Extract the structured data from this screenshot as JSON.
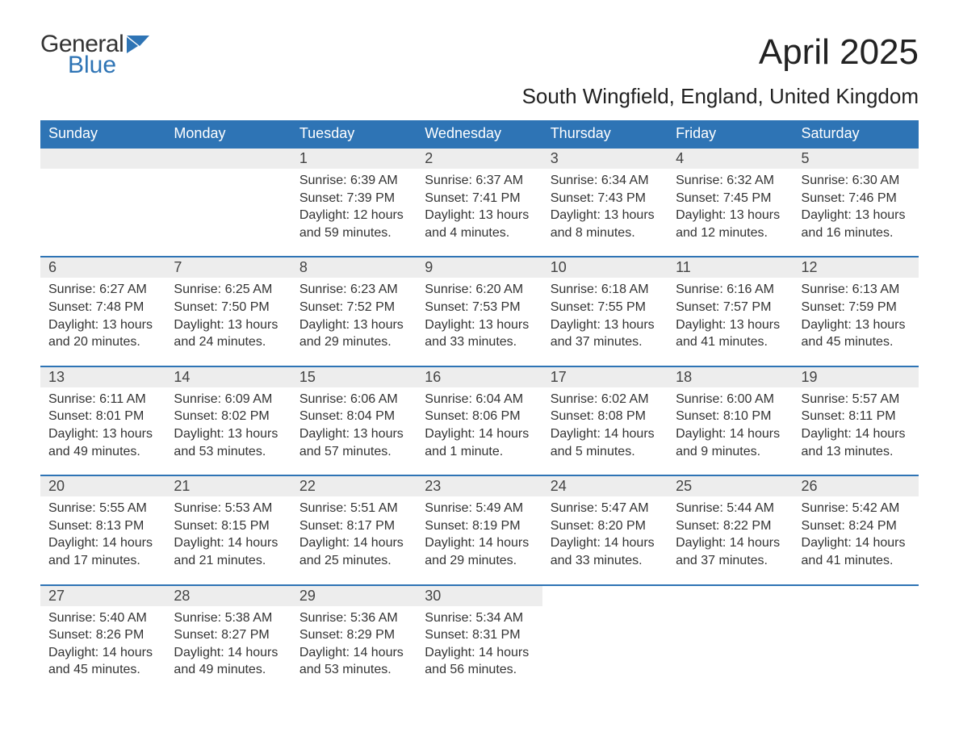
{
  "logo": {
    "text_top": "General",
    "text_bottom": "Blue",
    "accent_color": "#2e74b5",
    "text_color": "#333333"
  },
  "title": "April 2025",
  "location": "South Wingfield, England, United Kingdom",
  "styling": {
    "header_bg": "#2e74b5",
    "header_text_color": "#ffffff",
    "daynum_bg": "#ededed",
    "daynum_border_top": "#2e74b5",
    "body_text_color": "#333333",
    "page_bg": "#ffffff",
    "title_fontsize": 44,
    "location_fontsize": 26,
    "dayheader_fontsize": 18,
    "daynum_fontsize": 18,
    "cell_fontsize": 16
  },
  "day_headers": [
    "Sunday",
    "Monday",
    "Tuesday",
    "Wednesday",
    "Thursday",
    "Friday",
    "Saturday"
  ],
  "weeks": [
    [
      null,
      null,
      {
        "n": "1",
        "sunrise": "6:39 AM",
        "sunset": "7:39 PM",
        "daylight": "12 hours and 59 minutes."
      },
      {
        "n": "2",
        "sunrise": "6:37 AM",
        "sunset": "7:41 PM",
        "daylight": "13 hours and 4 minutes."
      },
      {
        "n": "3",
        "sunrise": "6:34 AM",
        "sunset": "7:43 PM",
        "daylight": "13 hours and 8 minutes."
      },
      {
        "n": "4",
        "sunrise": "6:32 AM",
        "sunset": "7:45 PM",
        "daylight": "13 hours and 12 minutes."
      },
      {
        "n": "5",
        "sunrise": "6:30 AM",
        "sunset": "7:46 PM",
        "daylight": "13 hours and 16 minutes."
      }
    ],
    [
      {
        "n": "6",
        "sunrise": "6:27 AM",
        "sunset": "7:48 PM",
        "daylight": "13 hours and 20 minutes."
      },
      {
        "n": "7",
        "sunrise": "6:25 AM",
        "sunset": "7:50 PM",
        "daylight": "13 hours and 24 minutes."
      },
      {
        "n": "8",
        "sunrise": "6:23 AM",
        "sunset": "7:52 PM",
        "daylight": "13 hours and 29 minutes."
      },
      {
        "n": "9",
        "sunrise": "6:20 AM",
        "sunset": "7:53 PM",
        "daylight": "13 hours and 33 minutes."
      },
      {
        "n": "10",
        "sunrise": "6:18 AM",
        "sunset": "7:55 PM",
        "daylight": "13 hours and 37 minutes."
      },
      {
        "n": "11",
        "sunrise": "6:16 AM",
        "sunset": "7:57 PM",
        "daylight": "13 hours and 41 minutes."
      },
      {
        "n": "12",
        "sunrise": "6:13 AM",
        "sunset": "7:59 PM",
        "daylight": "13 hours and 45 minutes."
      }
    ],
    [
      {
        "n": "13",
        "sunrise": "6:11 AM",
        "sunset": "8:01 PM",
        "daylight": "13 hours and 49 minutes."
      },
      {
        "n": "14",
        "sunrise": "6:09 AM",
        "sunset": "8:02 PM",
        "daylight": "13 hours and 53 minutes."
      },
      {
        "n": "15",
        "sunrise": "6:06 AM",
        "sunset": "8:04 PM",
        "daylight": "13 hours and 57 minutes."
      },
      {
        "n": "16",
        "sunrise": "6:04 AM",
        "sunset": "8:06 PM",
        "daylight": "14 hours and 1 minute."
      },
      {
        "n": "17",
        "sunrise": "6:02 AM",
        "sunset": "8:08 PM",
        "daylight": "14 hours and 5 minutes."
      },
      {
        "n": "18",
        "sunrise": "6:00 AM",
        "sunset": "8:10 PM",
        "daylight": "14 hours and 9 minutes."
      },
      {
        "n": "19",
        "sunrise": "5:57 AM",
        "sunset": "8:11 PM",
        "daylight": "14 hours and 13 minutes."
      }
    ],
    [
      {
        "n": "20",
        "sunrise": "5:55 AM",
        "sunset": "8:13 PM",
        "daylight": "14 hours and 17 minutes."
      },
      {
        "n": "21",
        "sunrise": "5:53 AM",
        "sunset": "8:15 PM",
        "daylight": "14 hours and 21 minutes."
      },
      {
        "n": "22",
        "sunrise": "5:51 AM",
        "sunset": "8:17 PM",
        "daylight": "14 hours and 25 minutes."
      },
      {
        "n": "23",
        "sunrise": "5:49 AM",
        "sunset": "8:19 PM",
        "daylight": "14 hours and 29 minutes."
      },
      {
        "n": "24",
        "sunrise": "5:47 AM",
        "sunset": "8:20 PM",
        "daylight": "14 hours and 33 minutes."
      },
      {
        "n": "25",
        "sunrise": "5:44 AM",
        "sunset": "8:22 PM",
        "daylight": "14 hours and 37 minutes."
      },
      {
        "n": "26",
        "sunrise": "5:42 AM",
        "sunset": "8:24 PM",
        "daylight": "14 hours and 41 minutes."
      }
    ],
    [
      {
        "n": "27",
        "sunrise": "5:40 AM",
        "sunset": "8:26 PM",
        "daylight": "14 hours and 45 minutes."
      },
      {
        "n": "28",
        "sunrise": "5:38 AM",
        "sunset": "8:27 PM",
        "daylight": "14 hours and 49 minutes."
      },
      {
        "n": "29",
        "sunrise": "5:36 AM",
        "sunset": "8:29 PM",
        "daylight": "14 hours and 53 minutes."
      },
      {
        "n": "30",
        "sunrise": "5:34 AM",
        "sunset": "8:31 PM",
        "daylight": "14 hours and 56 minutes."
      },
      null,
      null,
      null
    ]
  ],
  "labels": {
    "sunrise_prefix": "Sunrise: ",
    "sunset_prefix": "Sunset: ",
    "daylight_prefix": "Daylight: "
  }
}
